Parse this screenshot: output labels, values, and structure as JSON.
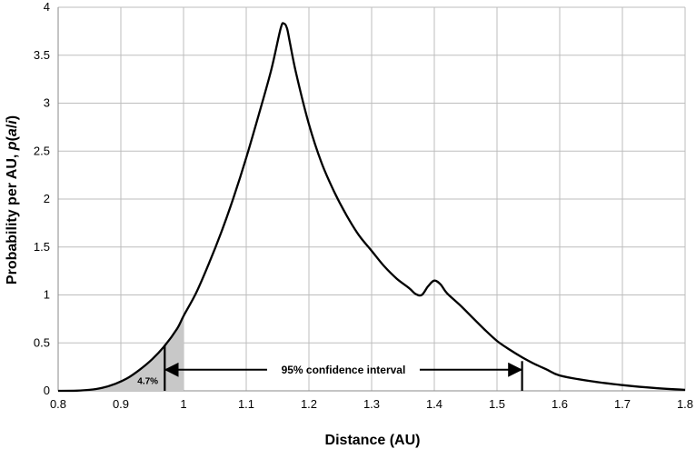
{
  "chart_data": {
    "type": "line",
    "title": "",
    "xlabel": "Distance (AU)",
    "ylabel_parts": {
      "prefix": "Probability per AU, ",
      "p": "p",
      "open": "(",
      "a": "a",
      "slash": "/",
      "i": "i",
      "close": ")"
    },
    "xlim": [
      0.8,
      1.8
    ],
    "ylim": [
      0,
      4
    ],
    "x_ticks": [
      "0.8",
      "0.9",
      "1",
      "1.1",
      "1.2",
      "1.3",
      "1.4",
      "1.5",
      "1.6",
      "1.7",
      "1.8"
    ],
    "y_ticks": [
      "0",
      "0.5",
      "1",
      "1.5",
      "2",
      "2.5",
      "3",
      "3.5",
      "4"
    ],
    "grid": true,
    "legend": "none",
    "line_color": "#000000",
    "shade_color": "#c8c8c8",
    "series": [
      {
        "points": [
          [
            0.8,
            0.0
          ],
          [
            0.83,
            0.002
          ],
          [
            0.85,
            0.01
          ],
          [
            0.87,
            0.03
          ],
          [
            0.89,
            0.07
          ],
          [
            0.91,
            0.13
          ],
          [
            0.93,
            0.22
          ],
          [
            0.95,
            0.33
          ],
          [
            0.97,
            0.47
          ],
          [
            0.99,
            0.65
          ],
          [
            1.0,
            0.78
          ],
          [
            1.02,
            1.02
          ],
          [
            1.04,
            1.32
          ],
          [
            1.06,
            1.65
          ],
          [
            1.08,
            2.02
          ],
          [
            1.1,
            2.43
          ],
          [
            1.12,
            2.88
          ],
          [
            1.14,
            3.35
          ],
          [
            1.155,
            3.78
          ],
          [
            1.16,
            3.83
          ],
          [
            1.165,
            3.78
          ],
          [
            1.17,
            3.62
          ],
          [
            1.18,
            3.3
          ],
          [
            1.2,
            2.78
          ],
          [
            1.22,
            2.38
          ],
          [
            1.24,
            2.08
          ],
          [
            1.26,
            1.83
          ],
          [
            1.28,
            1.62
          ],
          [
            1.3,
            1.46
          ],
          [
            1.32,
            1.3
          ],
          [
            1.34,
            1.17
          ],
          [
            1.36,
            1.07
          ],
          [
            1.37,
            1.01
          ],
          [
            1.38,
            1.0
          ],
          [
            1.39,
            1.09
          ],
          [
            1.4,
            1.15
          ],
          [
            1.41,
            1.11
          ],
          [
            1.42,
            1.02
          ],
          [
            1.44,
            0.9
          ],
          [
            1.46,
            0.77
          ],
          [
            1.48,
            0.64
          ],
          [
            1.5,
            0.52
          ],
          [
            1.52,
            0.43
          ],
          [
            1.54,
            0.35
          ],
          [
            1.56,
            0.28
          ],
          [
            1.58,
            0.22
          ],
          [
            1.6,
            0.16
          ],
          [
            1.65,
            0.1
          ],
          [
            1.7,
            0.06
          ],
          [
            1.75,
            0.03
          ],
          [
            1.8,
            0.01
          ]
        ]
      }
    ],
    "shaded_region": {
      "x_from": 0.8,
      "x_to": 1.0
    },
    "annotations": [
      {
        "kind": "shaded_label",
        "text": "4.7%",
        "x": 0.943,
        "y": 0.08
      },
      {
        "kind": "interval",
        "text": "95% confidence interval",
        "x_from": 0.97,
        "x_to": 1.54,
        "y": 0.22
      }
    ],
    "marker_lines": [
      {
        "x": 0.97,
        "y_top": 0.48
      },
      {
        "x": 1.54,
        "y_top": 0.31
      }
    ]
  }
}
